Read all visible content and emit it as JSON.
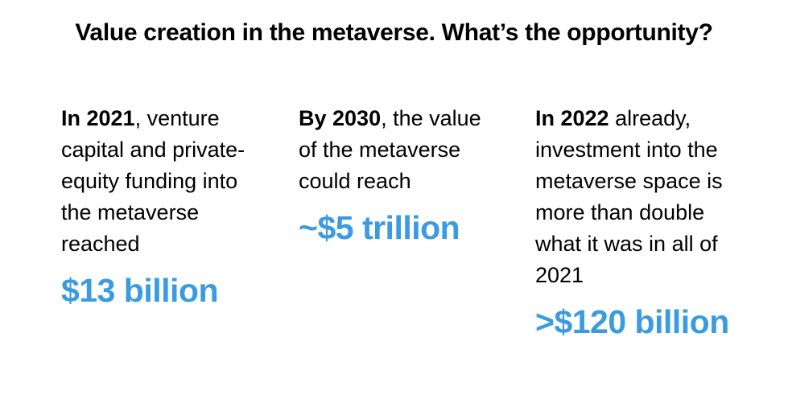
{
  "title": "Value creation in the metaverse.  What’s the opportunity?",
  "accent_color": "#3a9be0",
  "columns": [
    {
      "lead": "In 2021",
      "lines": [
        ", venture",
        "capital and private-",
        "equity funding into",
        "the metaverse",
        "reached"
      ],
      "value": "$13 billion"
    },
    {
      "lead": "By 2030",
      "lines": [
        ", the value",
        "of the metaverse",
        "could reach"
      ],
      "value": "~$5 trillion"
    },
    {
      "lead": "In 2022",
      "lines": [
        " already,",
        "investment into the",
        "metaverse space is",
        "more than double",
        "what it was in all of",
        "2021"
      ],
      "value": ">$120 billion"
    }
  ]
}
